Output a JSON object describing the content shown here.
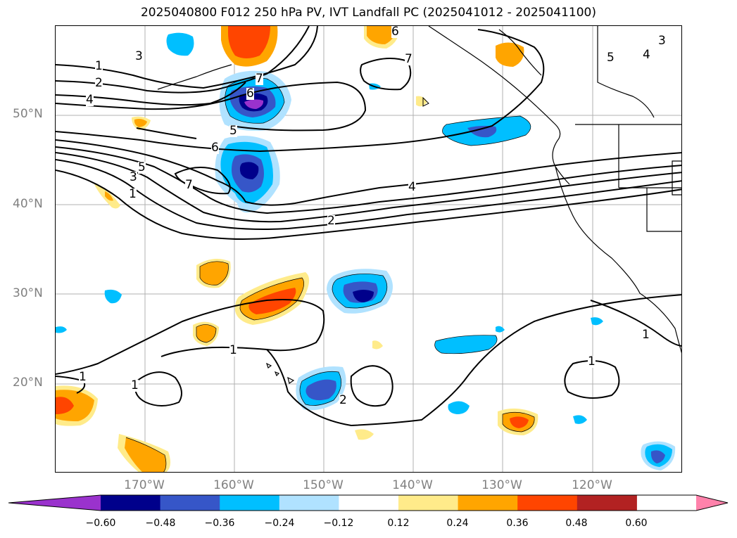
{
  "title": "2025040800 F012 250 hPa PV, IVT Landfall PC (2025041012 - 2025041100)",
  "axes": {
    "lat_labels": [
      "50°N",
      "40°N",
      "30°N",
      "20°N"
    ],
    "lon_labels": [
      "170°W",
      "160°W",
      "150°W",
      "140°W",
      "130°W",
      "120°W"
    ]
  },
  "colorbar": {
    "ticks": [
      "−0.60",
      "−0.48",
      "−0.36",
      "−0.24",
      "−0.12",
      "0.12",
      "0.24",
      "0.36",
      "0.48",
      "0.60"
    ],
    "colors": [
      "#9a32cd",
      "#00008b",
      "#3656c8",
      "#00bfff",
      "#b0e2ff",
      "#ffffff",
      "#ffeb8a",
      "#ffa500",
      "#ff4500",
      "#b22222",
      "#ff82ab"
    ]
  },
  "contour_labels": [
    "1",
    "2",
    "3",
    "4",
    "5",
    "6",
    "7"
  ],
  "colors": {
    "grid": "#b0b0b0",
    "tick_text": "#808080",
    "contour": "#000000"
  }
}
